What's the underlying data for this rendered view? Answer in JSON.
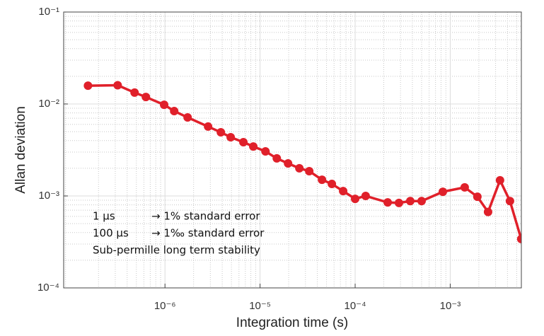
{
  "chart_data": {
    "type": "line",
    "xlabel": "Integration time (s)",
    "ylabel": "Allan deviation",
    "xscale": "log",
    "yscale": "log",
    "xlim": [
      8.6e-08,
      0.0056
    ],
    "ylim": [
      0.0001,
      0.1
    ],
    "xticks": [
      {
        "value": 1e-06,
        "label": "10⁻⁶"
      },
      {
        "value": 1e-05,
        "label": "10⁻⁵"
      },
      {
        "value": 0.0001,
        "label": "10⁻⁴"
      },
      {
        "value": 0.001,
        "label": "10⁻³"
      }
    ],
    "yticks": [
      {
        "value": 0.0001,
        "label": "10⁻⁴"
      },
      {
        "value": 0.001,
        "label": "10⁻³"
      },
      {
        "value": 0.01,
        "label": "10⁻²"
      },
      {
        "value": 0.1,
        "label": "10⁻¹"
      }
    ],
    "grid": true,
    "x": [
      1.55e-07,
      3.18e-07,
      4.79e-07,
      6.3e-07,
      9.8e-07,
      1.25e-06,
      1.73e-06,
      2.84e-06,
      3.87e-06,
      4.91e-06,
      6.68e-06,
      8.49e-06,
      1.14e-05,
      1.5e-05,
      1.97e-05,
      2.59e-05,
      3.29e-05,
      4.48e-05,
      5.69e-05,
      7.48e-05,
      0.0001,
      0.000129,
      0.00022,
      0.000289,
      0.00038,
      0.0005,
      0.000836,
      0.00142,
      0.00193,
      0.0025,
      0.00334,
      0.00425,
      0.00558
    ],
    "series": [
      {
        "color": "#e0202a",
        "values": [
          0.0158,
          0.016,
          0.0133,
          0.0119,
          0.0098,
          0.00838,
          0.00714,
          0.00568,
          0.00492,
          0.00435,
          0.00384,
          0.00345,
          0.00305,
          0.00256,
          0.00226,
          0.002,
          0.00186,
          0.0015,
          0.00135,
          0.00113,
          0.00093,
          0.001,
          0.00085,
          0.00084,
          0.00088,
          0.00088,
          0.00111,
          0.00124,
          0.00098,
          0.00067,
          0.00148,
          0.00088,
          0.00034
        ]
      }
    ],
    "annotations": [
      [
        "1 µs",
        "→ 1% standard error"
      ],
      [
        "100 µs",
        "→ 1‰ standard error"
      ],
      [
        "Sub-permille long term stability"
      ]
    ]
  }
}
